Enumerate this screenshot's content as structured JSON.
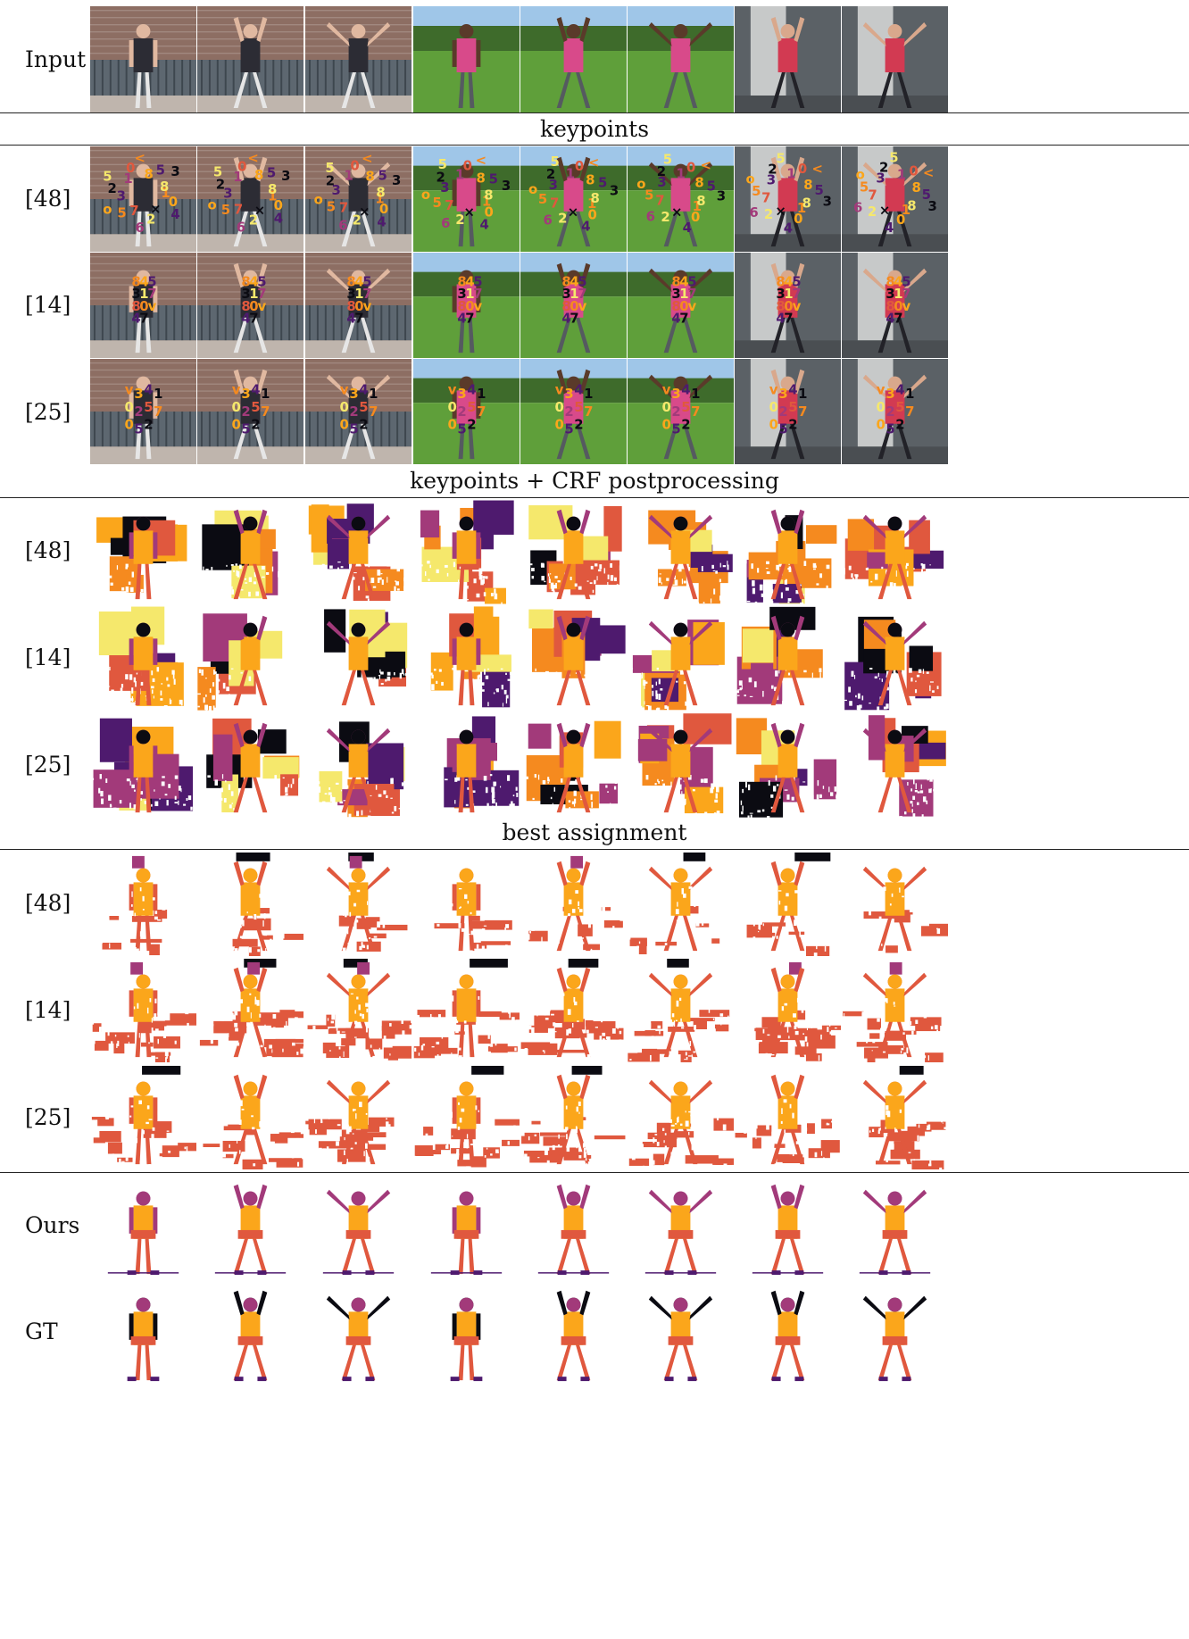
{
  "row_labels": {
    "input": "Input",
    "kp_48": "[48]",
    "kp_14": "[14]",
    "kp_25": "[25]",
    "crf_48": "[48]",
    "crf_14": "[14]",
    "crf_25": "[25]",
    "best_48": "[48]",
    "best_14": "[14]",
    "best_25": "[25]",
    "ours": "Ours",
    "gt": "GT"
  },
  "section_titles": {
    "keypoints": "keypoints",
    "crf": "keypoints + CRF postprocessing",
    "best": "best assignment"
  },
  "keypoint_glyphs": {
    "kp48": [
      "1",
      "0",
      "4",
      "×",
      "2",
      "6",
      "7",
      "5",
      "o",
      "3",
      "2",
      "5",
      "1",
      "0",
      "<",
      "8",
      "5",
      "3",
      "8"
    ],
    "kp14": [
      "8",
      "4",
      "5",
      "3",
      "1",
      "7",
      "8",
      "0",
      "v",
      "4",
      "7"
    ],
    "kp25": [
      "v",
      "3",
      "4",
      "1",
      "0",
      "2",
      "5",
      "7",
      "0",
      "5",
      "2"
    ]
  },
  "palette": {
    "black": "#0b0b12",
    "purple": "#4e1a6e",
    "magenta": "#a23a7a",
    "coral": "#e0583e",
    "orange": "#f58a1f",
    "amber": "#fba61b",
    "yellow": "#f5e86c"
  }
}
